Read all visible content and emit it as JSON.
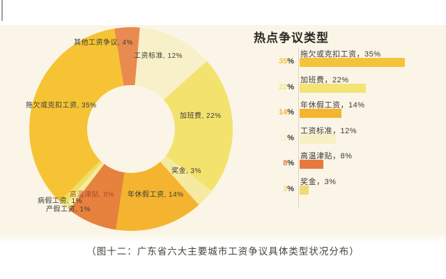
{
  "page": {
    "caption": "（图十二：广东省六大主要城市工资争议具体类型状况分布）"
  },
  "colors": {
    "background_cream": "#FAF5E6",
    "page_white": "#FFFFFF",
    "axis_line": "#D9D5C6",
    "donut_label_text": "#3E3C35",
    "donut_label_on_orange": "#A8452C",
    "bar_title_text": "#2A2823",
    "caption_text": "#44423B"
  },
  "chart_data": [
    {
      "type": "pie",
      "subtype": "donut",
      "title": "",
      "legend_position": "none",
      "order": "clockwise-from-top",
      "segments": [
        {
          "label": "工资标准",
          "value": 12,
          "display": "工资标准, 12%",
          "color": "#F8F0C9"
        },
        {
          "label": "加班费",
          "value": 22,
          "display": "加班费, 22%",
          "color": "#F3E26E"
        },
        {
          "label": "奖金",
          "value": 3,
          "display": "奖金, 3%",
          "color": "#F6EAA0"
        },
        {
          "label": "年休假工资",
          "value": 14,
          "display": "年休假工资, 14%",
          "color": "#F4B42F"
        },
        {
          "label": "高温津贴",
          "value": 8,
          "display": "高温津贴, 8%",
          "color": "#E7813E"
        },
        {
          "label": "产假工资",
          "value": 1,
          "display": "产假工资, 1%",
          "color": "#F7EC9E"
        },
        {
          "label": "病假工资",
          "value": 1,
          "display": "病假工资, 1%",
          "color": "#EEDE63"
        },
        {
          "label": "拖欠或克扣工资",
          "value": 35,
          "display": "拖欠或克扣工资, 35%",
          "color": "#F5C334"
        },
        {
          "label": "其他工资争议",
          "value": 4,
          "display": "其他工资争议, 4%",
          "color": "#E98B50"
        }
      ]
    },
    {
      "type": "bar",
      "orientation": "horizontal",
      "title": "热点争议类型",
      "xlim": [
        0,
        40
      ],
      "grid": false,
      "percent_suffix": "%",
      "bars": [
        {
          "label": "拖欠或克扣工资",
          "value": 35,
          "display": "拖欠或克扣工资，35%",
          "value_label": "35",
          "color": "#F5C33B"
        },
        {
          "label": "加班费",
          "value": 22,
          "display": "加班费，22%",
          "value_label": "22",
          "color": "#F4E476"
        },
        {
          "label": "年休假工资",
          "value": 14,
          "display": "年休假工资，14%",
          "value_label": "14",
          "color": "#F4B42F"
        },
        {
          "label": "工资标准",
          "value": 12,
          "display": "工资标准，12%",
          "value_label": "12",
          "color": "#F8F0C5"
        },
        {
          "label": "高温津贴",
          "value": 8,
          "display": "高温津贴，8%",
          "value_label": "8",
          "color": "#E7793C"
        },
        {
          "label": "奖金",
          "value": 3,
          "display": "奖金，3%",
          "value_label": "3",
          "color": "#F2D877"
        }
      ]
    }
  ]
}
